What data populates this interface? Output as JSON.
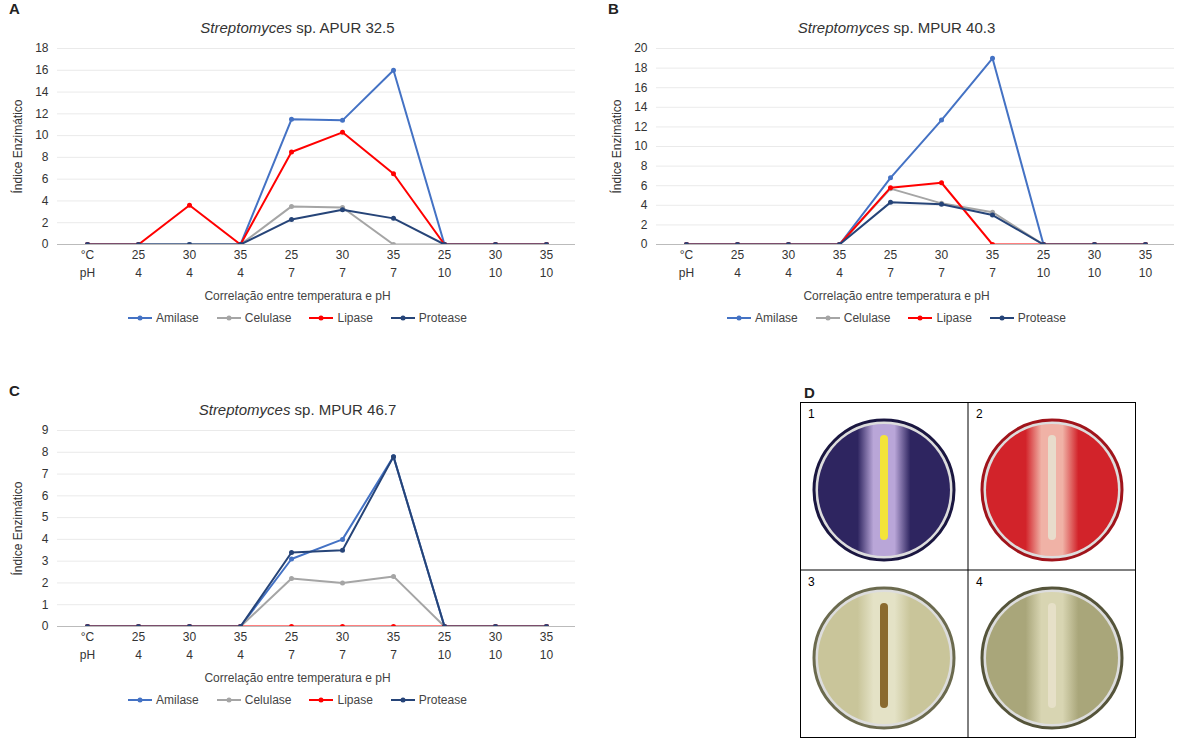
{
  "chart_data": [
    {
      "type": "line",
      "panel": "A",
      "title": "Streptomyces sp. APUR 32.5",
      "x_label": "Correlação entre temperatura e pH",
      "y_label": "Índice Enzimático",
      "categories": [
        "°C",
        "25",
        "30",
        "35",
        "25",
        "30",
        "35",
        "25",
        "30",
        "35"
      ],
      "second_row": [
        "pH",
        "4",
        "4",
        "4",
        "7",
        "7",
        "7",
        "10",
        "10",
        "10"
      ],
      "ylim": [
        0,
        18
      ],
      "yticks": [
        0,
        2,
        4,
        6,
        8,
        10,
        12,
        14,
        16,
        18
      ],
      "grid": true,
      "legend": "bottom",
      "marker": "circle",
      "series": [
        {
          "name": "Amilase",
          "color": "#4472c4",
          "values": [
            0,
            0,
            0,
            0,
            11.5,
            11.4,
            16,
            0,
            0,
            0
          ]
        },
        {
          "name": "Celulase",
          "color": "#a5a5a5",
          "values": [
            0,
            0,
            0,
            0,
            3.5,
            3.4,
            0,
            0,
            0,
            0
          ]
        },
        {
          "name": "Lipase",
          "color": "#ff0000",
          "values": [
            0,
            0,
            3.6,
            0,
            8.5,
            10.3,
            6.5,
            0,
            0,
            0
          ]
        },
        {
          "name": "Protease",
          "color": "#264478",
          "values": [
            0,
            0,
            0,
            0,
            2.3,
            3.2,
            2.4,
            0,
            0,
            0
          ]
        }
      ]
    },
    {
      "type": "line",
      "panel": "B",
      "title": "Streptomyces sp. MPUR 40.3",
      "x_label": "Correlação entre temperatura e pH",
      "y_label": "Índice Enzimático",
      "categories": [
        "°C",
        "25",
        "30",
        "35",
        "25",
        "30",
        "35",
        "25",
        "30",
        "35"
      ],
      "second_row": [
        "pH",
        "4",
        "4",
        "4",
        "7",
        "7",
        "7",
        "10",
        "10",
        "10"
      ],
      "ylim": [
        0,
        20
      ],
      "yticks": [
        0,
        2,
        4,
        6,
        8,
        10,
        12,
        14,
        16,
        18,
        20
      ],
      "grid": true,
      "legend": "bottom",
      "marker": "circle",
      "series": [
        {
          "name": "Amilase",
          "color": "#4472c4",
          "values": [
            0,
            0,
            0,
            0,
            6.8,
            12.7,
            19,
            0,
            0,
            0
          ]
        },
        {
          "name": "Celulase",
          "color": "#a5a5a5",
          "values": [
            0,
            0,
            0,
            0,
            5.7,
            4.2,
            3.3,
            0,
            0,
            0
          ]
        },
        {
          "name": "Lipase",
          "color": "#ff0000",
          "values": [
            0,
            0,
            0,
            0,
            5.8,
            6.3,
            0,
            0,
            0,
            0
          ]
        },
        {
          "name": "Protease",
          "color": "#264478",
          "values": [
            0,
            0,
            0,
            0,
            4.3,
            4.1,
            3.0,
            0,
            0,
            0
          ]
        }
      ]
    },
    {
      "type": "line",
      "panel": "C",
      "title": "Streptomyces sp. MPUR 46.7",
      "x_label": "Correlação entre temperatura e pH",
      "y_label": "Índice Enzimático",
      "categories": [
        "°C",
        "25",
        "30",
        "35",
        "25",
        "30",
        "35",
        "25",
        "30",
        "35"
      ],
      "second_row": [
        "pH",
        "4",
        "4",
        "4",
        "7",
        "7",
        "7",
        "10",
        "10",
        "10"
      ],
      "ylim": [
        0,
        9
      ],
      "yticks": [
        0,
        1,
        2,
        3,
        4,
        5,
        6,
        7,
        8,
        9
      ],
      "grid": true,
      "legend": "bottom",
      "marker": "circle",
      "series": [
        {
          "name": "Amilase",
          "color": "#4472c4",
          "values": [
            0,
            0,
            0,
            0,
            3.1,
            4.0,
            7.8,
            0,
            0,
            0
          ]
        },
        {
          "name": "Celulase",
          "color": "#a5a5a5",
          "values": [
            0,
            0,
            0,
            0,
            2.2,
            2.0,
            2.3,
            0,
            0,
            0
          ]
        },
        {
          "name": "Lipase",
          "color": "#ff0000",
          "values": [
            0,
            0,
            0,
            0,
            0,
            0,
            0,
            0,
            0,
            0
          ]
        },
        {
          "name": "Protease",
          "color": "#264478",
          "values": [
            0,
            0,
            0,
            0,
            3.4,
            3.5,
            7.8,
            0,
            0,
            0
          ]
        }
      ]
    }
  ],
  "image_panel": {
    "panel": "D",
    "plates": [
      "1",
      "2",
      "3",
      "4"
    ]
  }
}
